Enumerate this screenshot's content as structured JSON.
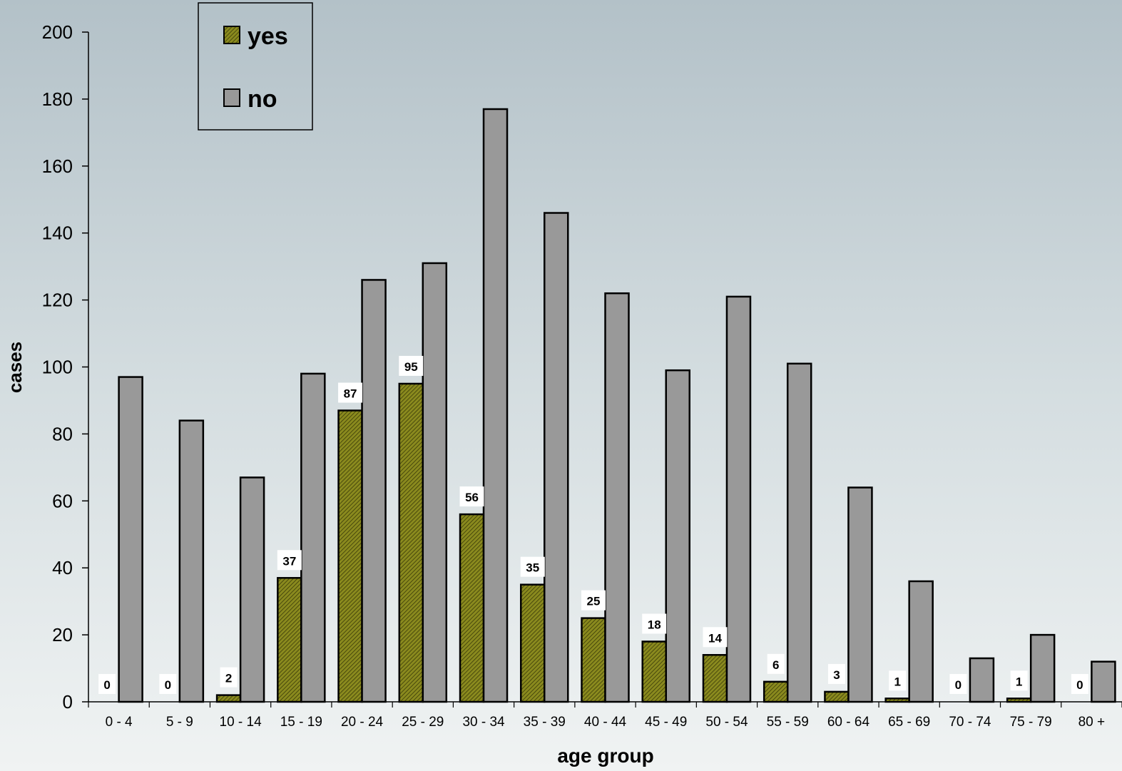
{
  "chart_data": {
    "type": "bar",
    "title": "",
    "xlabel": "age group",
    "ylabel": "cases",
    "ylim": [
      0,
      200
    ],
    "yticks": [
      0,
      20,
      40,
      60,
      80,
      100,
      120,
      140,
      160,
      180,
      200
    ],
    "grid": false,
    "legend_position": "top-left",
    "categories": [
      "0 - 4",
      "5 - 9",
      "10 - 14",
      "15 - 19",
      "20 - 24",
      "25 - 29",
      "30 - 34",
      "35 - 39",
      "40 - 44",
      "45 - 49",
      "50 - 54",
      "55 - 59",
      "60 - 64",
      "65 - 69",
      "70 - 74",
      "75 - 79",
      "80 +"
    ],
    "series": [
      {
        "name": "yes",
        "color": "#8a8a1e",
        "pattern": "diagonal-hatch",
        "show_data_labels": true,
        "values": [
          0,
          0,
          2,
          37,
          87,
          95,
          56,
          35,
          25,
          18,
          14,
          6,
          3,
          1,
          0,
          1,
          0
        ]
      },
      {
        "name": "no",
        "color": "#999999",
        "pattern": "solid",
        "show_data_labels": false,
        "values": [
          97,
          84,
          67,
          98,
          126,
          131,
          177,
          146,
          122,
          99,
          121,
          101,
          64,
          36,
          13,
          20,
          12
        ]
      }
    ]
  },
  "colors": {
    "background_top": "#b3c1c8",
    "background_bottom": "#f0f3f3",
    "bar_outline": "#000000",
    "data_label_box": "#ffffff"
  }
}
